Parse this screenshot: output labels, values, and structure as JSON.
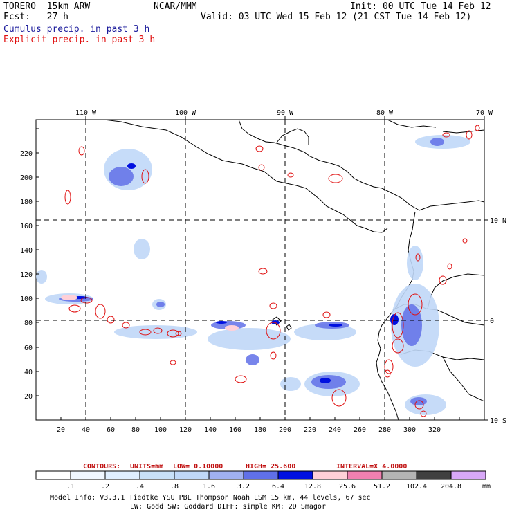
{
  "header": {
    "model": "TORERO  15km ARW",
    "org": "NCAR/MMM",
    "init": "Init: 00 UTC Tue 14 Feb 12",
    "fcst": "Fcst:   27 h",
    "valid": "Valid: 03 UTC Wed 15 Feb 12 (21 CST Tue 14 Feb 12)",
    "cumulus": "Cumulus precip. in past 3 h",
    "explicit": "Explicit precip. in past 3 h"
  },
  "axes": {
    "lon_labels": [
      "110 W",
      "100 W",
      "90 W",
      "80 W",
      "70 W"
    ],
    "lat_labels": [
      "10 N",
      "0",
      "10 S"
    ],
    "x_ticks": [
      "20",
      "40",
      "60",
      "80",
      "100",
      "120",
      "140",
      "160",
      "180",
      "200",
      "220",
      "240",
      "260",
      "280",
      "300",
      "320"
    ],
    "y_ticks": [
      "20",
      "40",
      "60",
      "80",
      "100",
      "120",
      "140",
      "160",
      "180",
      "200",
      "220"
    ]
  },
  "contour_info": {
    "contours": "CONTOURS:",
    "units": "UNITS=mm",
    "low": "LOW= 0.10000",
    "high": "HIGH=  25.600",
    "interval": "INTERVAL=X  4.0000"
  },
  "colorbar": {
    "levels": [
      ".1",
      ".2",
      ".4",
      ".8",
      "1.6",
      "3.2",
      "6.4",
      "12.8",
      "25.6",
      "51.2",
      "102.4",
      "204.8"
    ],
    "unit": "mm",
    "colors": [
      "#ffffff",
      "#f0f7ff",
      "#e0efff",
      "#c8e0f8",
      "#c0d8f8",
      "#a0b0f0",
      "#6070e8",
      "#0010e0",
      "#ffd0d8",
      "#f080b0",
      "#b4b4b4",
      "#404040",
      "#d8a8f8"
    ]
  },
  "footer": {
    "line1": "Model Info: V3.3.1    Tiedtke YSU PBL   Thompson     Noah LSM  15 km,    44 levels,    67 sec",
    "line2": "LW: Godd SW: Goddard DIFF: simple KM: 2D Smagor"
  }
}
